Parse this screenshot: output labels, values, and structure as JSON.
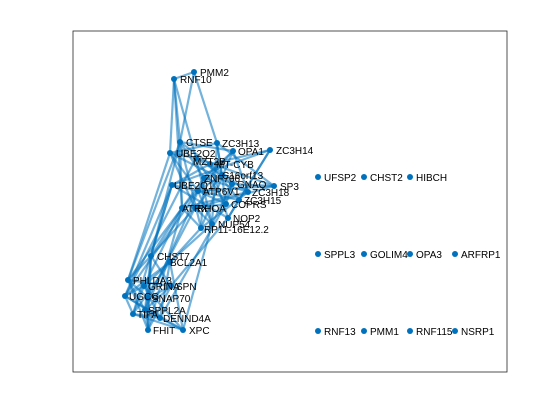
{
  "figure": {
    "accent_color": "#0072BD",
    "background": "#ffffff",
    "axes_box": true
  },
  "graph": {
    "type": "network",
    "node_color": "#0072BD",
    "nodes": [
      {
        "id": "PMM2"
      },
      {
        "id": "RNF10"
      },
      {
        "id": "CTSE"
      },
      {
        "id": "ZC3H13"
      },
      {
        "id": "ZC3H14"
      },
      {
        "id": "UBE2Q2"
      },
      {
        "id": "OPA1"
      },
      {
        "id": "MZT2B"
      },
      {
        "id": "MT-CYB"
      },
      {
        "id": "C16orf13"
      },
      {
        "id": "ZNF706"
      },
      {
        "id": "GNAQ"
      },
      {
        "id": "UBE2Q1"
      },
      {
        "id": "SP3"
      },
      {
        "id": "ZC3H18"
      },
      {
        "id": "ATP6V1"
      },
      {
        "id": "ZC3H15"
      },
      {
        "id": "COPRS"
      },
      {
        "id": "ATRX"
      },
      {
        "id": "RHOA"
      },
      {
        "id": "NOP2"
      },
      {
        "id": "NUP54"
      },
      {
        "id": "RP11-16E12.2"
      },
      {
        "id": "CHST7"
      },
      {
        "id": "BCL2A1"
      },
      {
        "id": "PHLDA3"
      },
      {
        "id": "GRINA"
      },
      {
        "id": "SPN"
      },
      {
        "id": "UGCG"
      },
      {
        "id": "SNAP70"
      },
      {
        "id": "TIFA"
      },
      {
        "id": "SPPL2A"
      },
      {
        "id": "DENND4A"
      },
      {
        "id": "FHIT"
      },
      {
        "id": "XPC"
      },
      {
        "id": "UFSP2"
      },
      {
        "id": "CHST2"
      },
      {
        "id": "HIBCH"
      },
      {
        "id": "SPPL3"
      },
      {
        "id": "GOLIM4"
      },
      {
        "id": "OPA3"
      },
      {
        "id": "ARFRP1"
      },
      {
        "id": "RNF13"
      },
      {
        "id": "PMM1"
      },
      {
        "id": "RNF115"
      },
      {
        "id": "NSRP1"
      }
    ]
  }
}
